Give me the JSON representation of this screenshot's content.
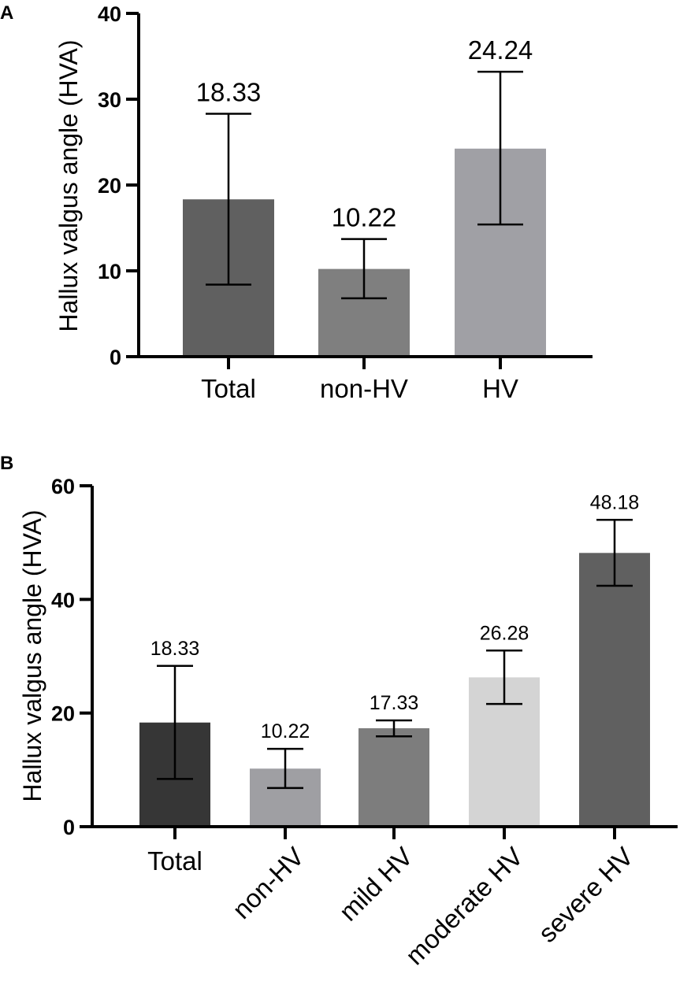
{
  "chart_data": [
    {
      "panel": "A",
      "type": "bar",
      "ylabel": "Hallux valgus angle (HVA)",
      "ylim": [
        0,
        40
      ],
      "yticks": [
        "0",
        "10",
        "20",
        "30",
        "40"
      ],
      "categories": [
        "Total",
        "non-HV",
        "HV"
      ],
      "values": [
        18.33,
        10.22,
        24.24
      ],
      "value_labels": [
        "18.33",
        "10.22",
        "24.24"
      ],
      "error_low": [
        8.4,
        6.8,
        15.4
      ],
      "error_high": [
        28.3,
        13.7,
        33.2
      ],
      "colors": [
        "#606060",
        "#7f7f7f",
        "#a0a0a5"
      ]
    },
    {
      "panel": "B",
      "type": "bar",
      "ylabel": "Hallux valgus angle (HVA)",
      "ylim": [
        0,
        60
      ],
      "yticks": [
        "0",
        "20",
        "40",
        "60"
      ],
      "categories": [
        "Total",
        "non-HV",
        "mild HV",
        "moderate HV",
        "severe HV"
      ],
      "values": [
        18.33,
        10.22,
        17.33,
        26.28,
        48.18
      ],
      "value_labels": [
        "18.33",
        "10.22",
        "17.33",
        "26.28",
        "48.18"
      ],
      "error_low": [
        8.4,
        6.8,
        15.9,
        21.6,
        42.4
      ],
      "error_high": [
        28.3,
        13.7,
        18.7,
        31.0,
        54.0
      ],
      "colors": [
        "#363636",
        "#9f9fa3",
        "#7d7d7d",
        "#d4d4d4",
        "#606060"
      ]
    }
  ]
}
